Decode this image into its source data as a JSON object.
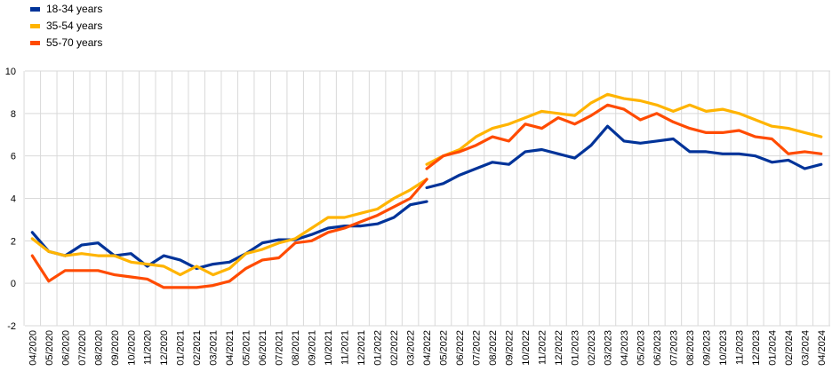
{
  "chart_data": {
    "type": "line",
    "title": "",
    "xlabel": "",
    "ylabel": "",
    "ylim": [
      -2,
      10
    ],
    "yticks": [
      -2,
      0,
      2,
      4,
      6,
      8,
      10
    ],
    "grid": true,
    "legend_position": "top-left",
    "x": [
      "04/2020",
      "05/2020",
      "06/2020",
      "07/2020",
      "08/2020",
      "09/2020",
      "10/2020",
      "11/2020",
      "12/2020",
      "01/2021",
      "02/2021",
      "03/2021",
      "04/2021",
      "05/2021",
      "06/2021",
      "07/2021",
      "08/2021",
      "09/2021",
      "10/2021",
      "11/2021",
      "12/2021",
      "01/2022",
      "02/2022",
      "03/2022",
      "04/2022",
      "05/2022",
      "06/2022",
      "07/2022",
      "08/2022",
      "09/2022",
      "10/2022",
      "11/2022",
      "12/2022",
      "01/2023",
      "02/2023",
      "03/2023",
      "04/2023",
      "05/2023",
      "06/2023",
      "07/2023",
      "08/2023",
      "09/2023",
      "10/2023",
      "11/2023",
      "12/2023",
      "01/2024",
      "02/2024",
      "03/2024",
      "04/2024"
    ],
    "xticks": [
      "04/2020",
      "05/2020",
      "06/2020",
      "07/2020",
      "08/2020",
      "09/2020",
      "10/2020",
      "11/2020",
      "12/2020",
      "01/2021",
      "02/2021",
      "03/2021",
      "04/2021",
      "05/2021",
      "06/2021",
      "07/2021",
      "08/2021",
      "09/2021",
      "10/2021",
      "11/2021",
      "12/2021",
      "01/2022",
      "02/2022",
      "03/2022",
      "04/2022",
      "05/2022",
      "06/2022",
      "07/2022",
      "08/2022",
      "09/2022",
      "10/2022",
      "11/2022",
      "12/2022",
      "01/2023",
      "02/2023",
      "03/2023",
      "04/2023",
      "05/2023",
      "06/2023",
      "07/2023",
      "08/2023",
      "09/2023",
      "10/2023",
      "11/2023",
      "12/2023",
      "01/2024",
      "02/2024",
      "03/2024",
      "04/2024"
    ],
    "series": [
      {
        "name": "18-34 years",
        "color": "#003399",
        "segments": [
          [
            2.4,
            1.5,
            1.3,
            1.8,
            1.9,
            1.3,
            1.4,
            0.8,
            1.3,
            1.1,
            0.7,
            0.9,
            1.0,
            1.4,
            1.9,
            2.05,
            2.05,
            2.3,
            2.6,
            2.7,
            2.7,
            2.8,
            3.1,
            3.7,
            3.85
          ],
          [
            4.5,
            4.7,
            5.1,
            5.4,
            5.7,
            5.6,
            6.2,
            6.3,
            6.1,
            5.9,
            6.5,
            7.4,
            6.7,
            6.6,
            6.7,
            6.8,
            6.2,
            6.2,
            6.1,
            6.1,
            6.0,
            5.7,
            5.8,
            5.4,
            5.6
          ]
        ]
      },
      {
        "name": "35-54 years",
        "color": "#ffb400",
        "segments": [
          [
            2.1,
            1.5,
            1.3,
            1.4,
            1.3,
            1.3,
            1.0,
            0.9,
            0.8,
            0.4,
            0.8,
            0.4,
            0.7,
            1.4,
            1.6,
            1.9,
            2.1,
            2.6,
            3.1,
            3.1,
            3.3,
            3.5,
            4.0,
            4.4,
            4.9
          ],
          [
            5.6,
            6.0,
            6.3,
            6.9,
            7.3,
            7.5,
            7.8,
            8.1,
            8.0,
            7.9,
            8.5,
            8.9,
            8.7,
            8.6,
            8.4,
            8.1,
            8.4,
            8.1,
            8.2,
            8.0,
            7.7,
            7.4,
            7.3,
            7.1,
            6.9
          ]
        ]
      },
      {
        "name": "55-70 years",
        "color": "#ff4b00",
        "segments": [
          [
            1.3,
            0.1,
            0.6,
            0.6,
            0.6,
            0.4,
            0.3,
            0.2,
            -0.2,
            -0.2,
            -0.2,
            -0.1,
            0.1,
            0.7,
            1.1,
            1.2,
            1.9,
            2.0,
            2.4,
            2.6,
            2.9,
            3.2,
            3.6,
            4.0,
            4.9
          ],
          [
            5.4,
            6.0,
            6.2,
            6.5,
            6.9,
            6.7,
            7.5,
            7.3,
            7.8,
            7.5,
            7.9,
            8.4,
            8.2,
            7.7,
            8.0,
            7.6,
            7.3,
            7.1,
            7.1,
            7.2,
            6.9,
            6.8,
            6.1,
            6.2,
            6.1
          ]
        ]
      }
    ]
  }
}
